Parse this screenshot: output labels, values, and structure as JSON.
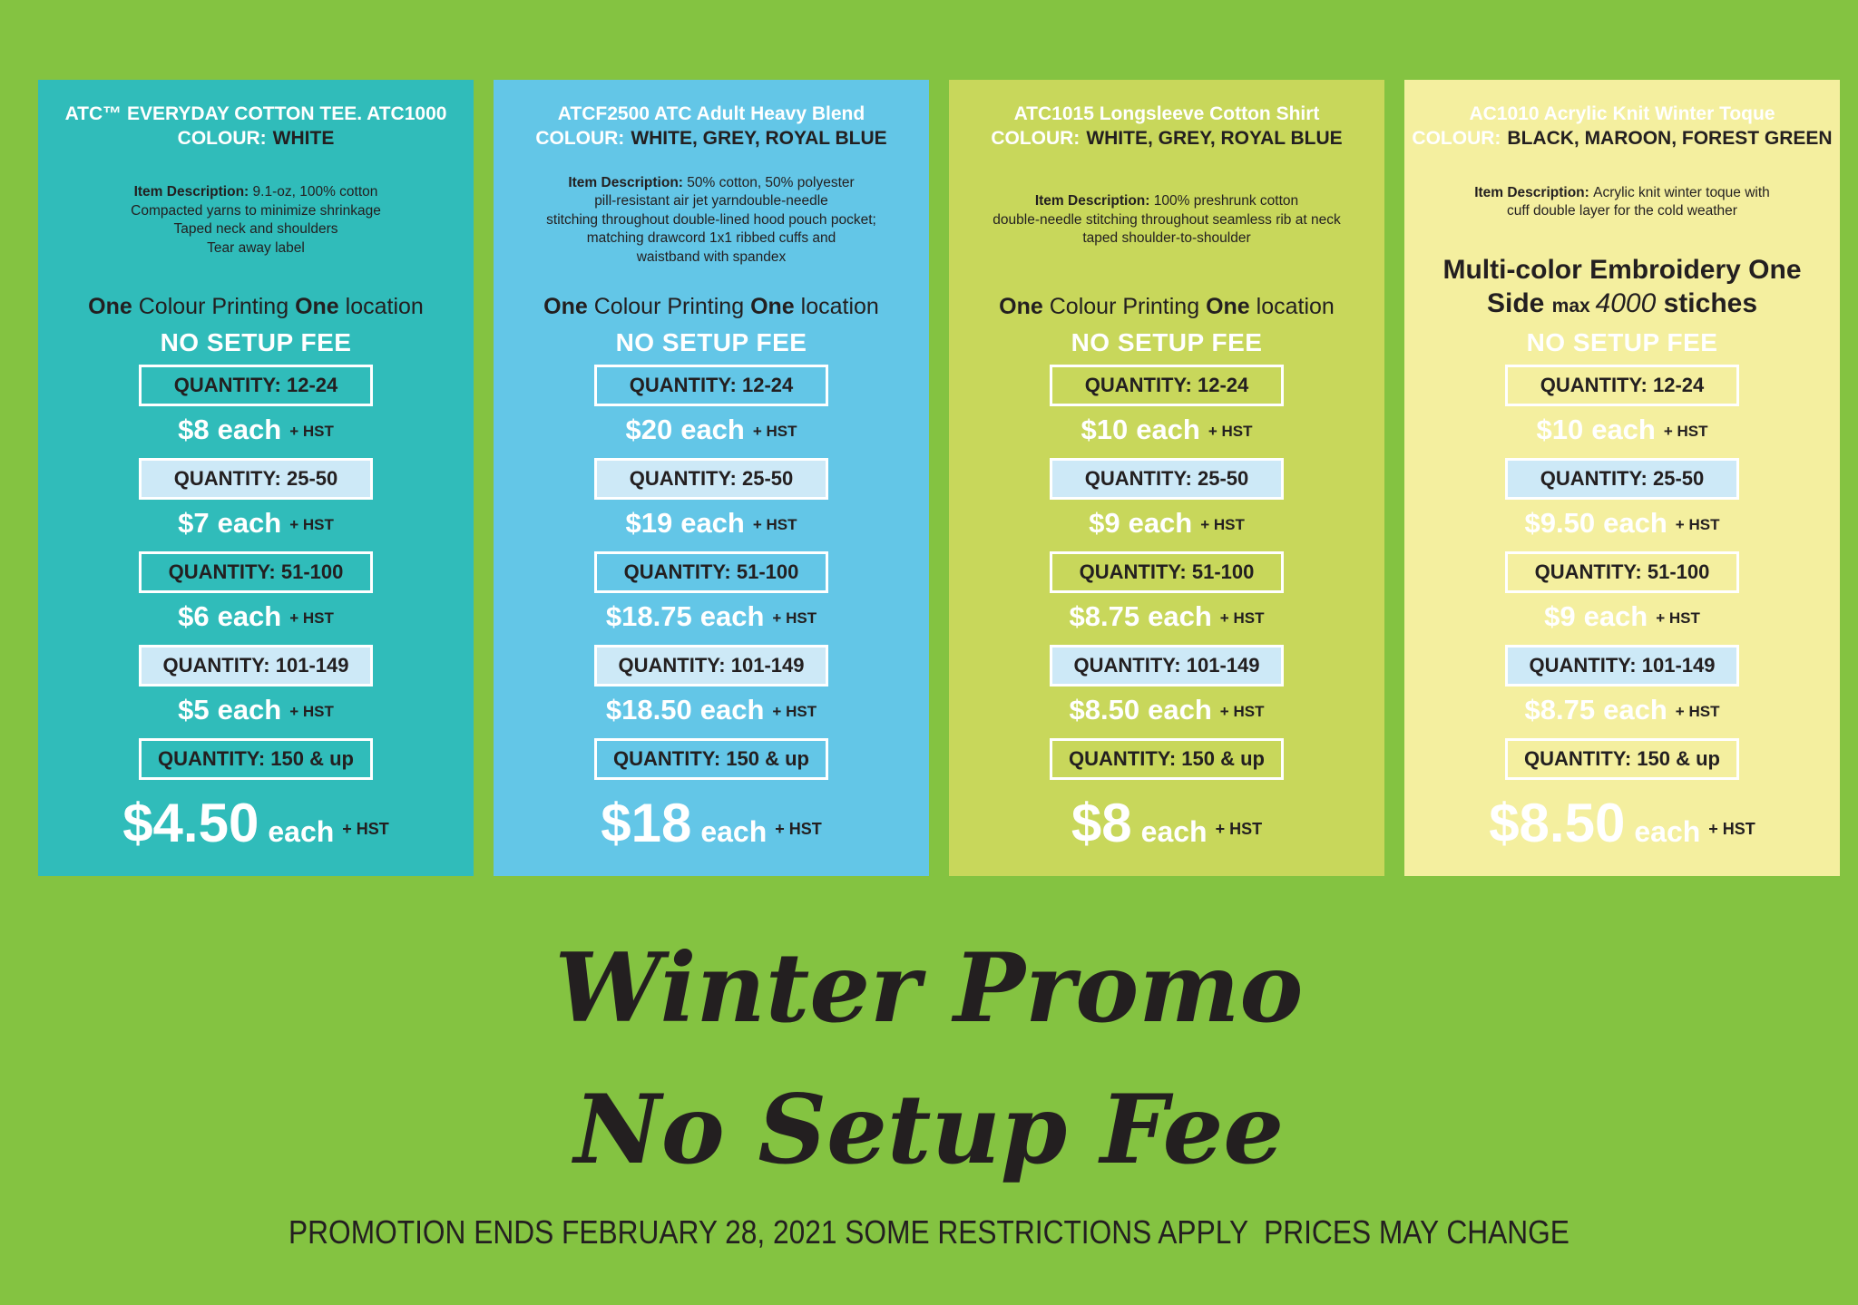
{
  "palette": {
    "background_green": "#84c341",
    "card_teal": "#30bcba",
    "card_blue": "#63c6e7",
    "card_yellow_green": "#c8d75b",
    "card_pale_yellow": "#f4ef9f",
    "quantity_box_fill": "#cde9f7",
    "quantity_box_border": "#ffffff",
    "dark_text": "#231f20",
    "white_text": "#ffffff"
  },
  "footer": {
    "promo_line1": "Winter Promo",
    "promo_line2": "No Setup Fee",
    "disclaimer": "PROMOTION ENDS FEBRUARY 28, 2021 SOME RESTRICTIONS APPLY  PRICES MAY CHANGE"
  },
  "cards": [
    {
      "id": "atc1000",
      "bg": "#30bcba",
      "title": "ATC™ EVERYDAY COTTON TEE. ATC1000",
      "colour_label": "COLOUR:",
      "colour_value": "WHITE",
      "description_label": "Item Description:",
      "description_lines": [
        "9.1-oz, 100% cotton",
        "Compacted yarns to minimize shrinkage",
        "Taped neck and shoulders",
        "Tear away label"
      ],
      "print_lines": [
        [
          {
            "text": "One ",
            "style": "bold"
          },
          {
            "text": "Colour Printing ",
            "style": "normal"
          },
          {
            "text": "One ",
            "style": "bold"
          },
          {
            "text": "location",
            "style": "normal"
          }
        ]
      ],
      "no_setup_fee": "NO SETUP FEE",
      "tiers": [
        {
          "quantity": "QUANTITY: 12-24",
          "price": "$8",
          "unit": "each",
          "tax": "+ HST",
          "box": "outline",
          "emphasis": false
        },
        {
          "quantity": "QUANTITY: 25-50",
          "price": "$7",
          "unit": "each",
          "tax": "+ HST",
          "box": "filled",
          "emphasis": false
        },
        {
          "quantity": "QUANTITY: 51-100",
          "price": "$6",
          "unit": "each",
          "tax": "+ HST",
          "box": "outline",
          "emphasis": false
        },
        {
          "quantity": "QUANTITY: 101-149",
          "price": "$5",
          "unit": "each",
          "tax": "+ HST",
          "box": "filled",
          "emphasis": false
        },
        {
          "quantity": "QUANTITY: 150 & up",
          "price": "$4.50",
          "unit": "each",
          "tax": "+ HST",
          "box": "outline",
          "emphasis": true
        }
      ]
    },
    {
      "id": "atcf2500",
      "bg": "#63c6e7",
      "title": "ATCF2500 ATC Adult Heavy Blend",
      "colour_label": "COLOUR:",
      "colour_value": "WHITE, GREY, ROYAL BLUE",
      "description_label": "Item Description:",
      "description_lines": [
        "50% cotton, 50% polyester",
        "pill-resistant air jet yarndouble-needle",
        "stitching throughout double-lined hood pouch pocket;",
        "matching drawcord 1x1 ribbed cuffs and",
        "waistband with spandex"
      ],
      "print_lines": [
        [
          {
            "text": "One ",
            "style": "bold"
          },
          {
            "text": "Colour Printing ",
            "style": "normal"
          },
          {
            "text": "One ",
            "style": "bold"
          },
          {
            "text": "location",
            "style": "normal"
          }
        ]
      ],
      "no_setup_fee": "NO SETUP FEE",
      "tiers": [
        {
          "quantity": "QUANTITY: 12-24",
          "price": "$20",
          "unit": "each",
          "tax": "+ HST",
          "box": "outline",
          "emphasis": false
        },
        {
          "quantity": "QUANTITY: 25-50",
          "price": "$19",
          "unit": "each",
          "tax": "+ HST",
          "box": "filled",
          "emphasis": false
        },
        {
          "quantity": "QUANTITY: 51-100",
          "price": "$18.75",
          "unit": "each",
          "tax": "+ HST",
          "box": "outline",
          "emphasis": false
        },
        {
          "quantity": "QUANTITY: 101-149",
          "price": "$18.50",
          "unit": "each",
          "tax": "+ HST",
          "box": "filled",
          "emphasis": false
        },
        {
          "quantity": "QUANTITY: 150 & up",
          "price": "$18",
          "unit": "each",
          "tax": "+ HST",
          "box": "outline",
          "emphasis": true
        }
      ]
    },
    {
      "id": "atc1015",
      "bg": "#c8d75b",
      "title": "ATC1015 Longsleeve Cotton Shirt",
      "colour_label": "COLOUR:",
      "colour_value": "WHITE, GREY, ROYAL BLUE",
      "description_label": "Item Description:",
      "description_lines": [
        "100% preshrunk cotton",
        "double-needle stitching throughout seamless rib at neck",
        "taped shoulder-to-shoulder"
      ],
      "print_lines": [
        [
          {
            "text": "One ",
            "style": "bold"
          },
          {
            "text": "Colour Printing ",
            "style": "normal"
          },
          {
            "text": "One ",
            "style": "bold"
          },
          {
            "text": "location",
            "style": "normal"
          }
        ]
      ],
      "no_setup_fee": "NO SETUP FEE",
      "tiers": [
        {
          "quantity": "QUANTITY: 12-24",
          "price": "$10",
          "unit": "each",
          "tax": "+ HST",
          "box": "outline",
          "emphasis": false
        },
        {
          "quantity": "QUANTITY: 25-50",
          "price": "$9",
          "unit": "each",
          "tax": "+ HST",
          "box": "filled",
          "emphasis": false
        },
        {
          "quantity": "QUANTITY: 51-100",
          "price": "$8.75",
          "unit": "each",
          "tax": "+ HST",
          "box": "outline",
          "emphasis": false
        },
        {
          "quantity": "QUANTITY: 101-149",
          "price": "$8.50",
          "unit": "each",
          "tax": "+ HST",
          "box": "filled",
          "emphasis": false
        },
        {
          "quantity": "QUANTITY: 150 & up",
          "price": "$8",
          "unit": "each",
          "tax": "+ HST",
          "box": "outline",
          "emphasis": true
        }
      ]
    },
    {
      "id": "ac1010",
      "bg": "#f4ef9f",
      "title": "AC1010 Acrylic Knit Winter Toque",
      "colour_label": "COLOUR:",
      "colour_value": "BLACK, MAROON, FOREST GREEN",
      "description_label": "Item Description:",
      "description_lines": [
        "Acrylic knit winter toque with",
        "cuff double layer for the cold weather"
      ],
      "print_lines": [
        [
          {
            "text": "Multi-color Embroidery One",
            "style": "bold-lg"
          }
        ],
        [
          {
            "text": "Side ",
            "style": "bold-lg"
          },
          {
            "text": "max ",
            "style": "bold-sm"
          },
          {
            "text": "4000 ",
            "style": "italic-lg"
          },
          {
            "text": "stiches",
            "style": "bold-lg"
          }
        ]
      ],
      "no_setup_fee": "NO SETUP FEE",
      "tiers": [
        {
          "quantity": "QUANTITY: 12-24",
          "price": "$10",
          "unit": "each",
          "tax": "+ HST",
          "box": "outline",
          "emphasis": false
        },
        {
          "quantity": "QUANTITY: 25-50",
          "price": "$9.50",
          "unit": "each",
          "tax": "+ HST",
          "box": "filled",
          "emphasis": false
        },
        {
          "quantity": "QUANTITY: 51-100",
          "price": "$9",
          "unit": "each",
          "tax": "+ HST",
          "box": "outline",
          "emphasis": false
        },
        {
          "quantity": "QUANTITY: 101-149",
          "price": "$8.75",
          "unit": "each",
          "tax": "+ HST",
          "box": "filled",
          "emphasis": false
        },
        {
          "quantity": "QUANTITY: 150 & up",
          "price": "$8.50",
          "unit": "each",
          "tax": "+ HST",
          "box": "outline",
          "emphasis": true
        }
      ]
    }
  ]
}
